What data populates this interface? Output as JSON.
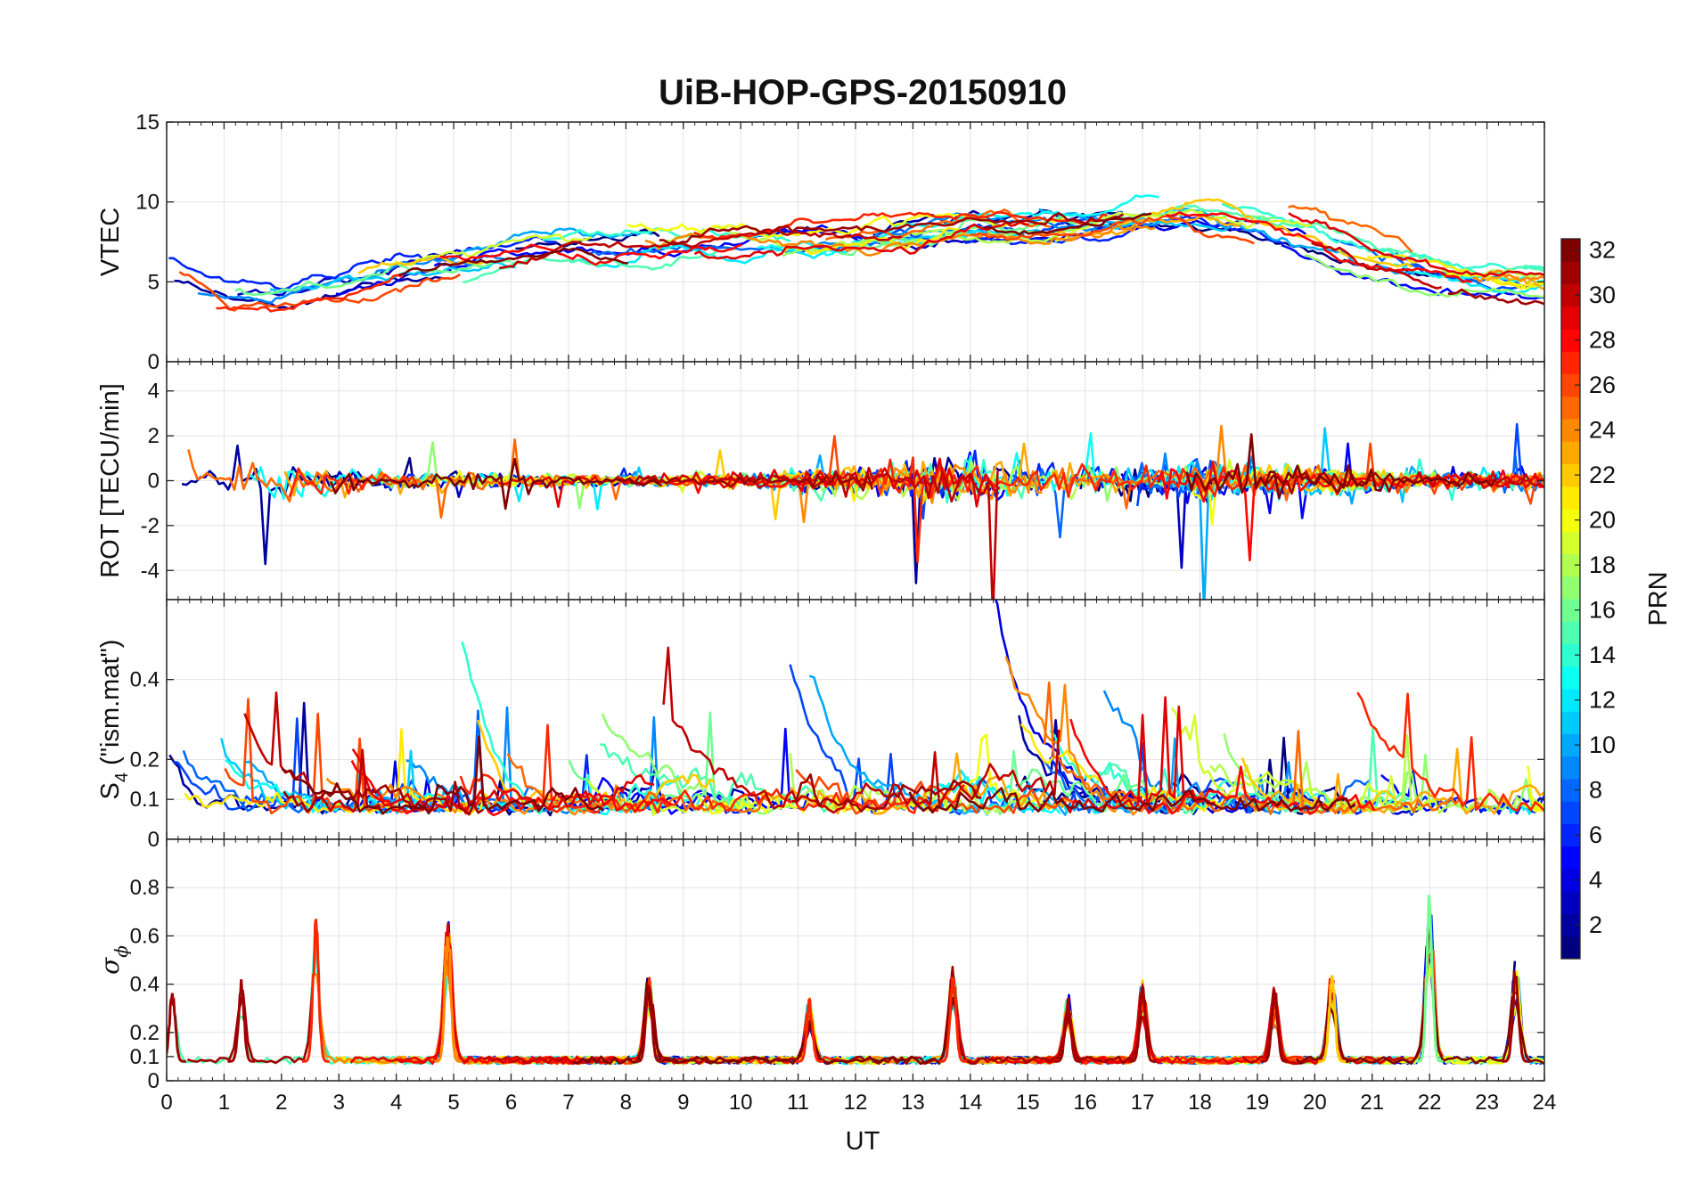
{
  "chart_data": {
    "type": "line",
    "title": "UiB-HOP-GPS-20150910",
    "xlabel": "UT",
    "xlim": [
      0,
      24
    ],
    "x_ticks": [
      "0",
      "1",
      "2",
      "3",
      "4",
      "5",
      "6",
      "7",
      "8",
      "9",
      "10",
      "11",
      "12",
      "13",
      "14",
      "15",
      "16",
      "17",
      "18",
      "19",
      "20",
      "21",
      "22",
      "23",
      "24"
    ],
    "series_note": "One line per GPS satellite PRN 1–32, coloured by PRN on a jet colormap",
    "panels": [
      {
        "id": "vtec",
        "ylabel": "VTEC",
        "ylim": [
          0,
          15
        ],
        "y_ticks": [
          "0",
          "5",
          "10",
          "15"
        ],
        "y_tick_values": [
          0,
          5,
          10,
          15
        ],
        "grid": true,
        "approx_background_profile": {
          "x": [
            0,
            1,
            2,
            3,
            4,
            5,
            6,
            7,
            8,
            9,
            10,
            11,
            12,
            13,
            14,
            15,
            16,
            17,
            18,
            19,
            20,
            21,
            22,
            23,
            24
          ],
          "y": [
            5.0,
            3.6,
            3.8,
            4.5,
            5.5,
            5.8,
            6.3,
            6.8,
            6.9,
            7.1,
            7.4,
            7.5,
            7.6,
            7.8,
            8.5,
            8.2,
            8.3,
            9.0,
            9.3,
            8.6,
            7.8,
            6.4,
            5.5,
            5.0,
            4.8
          ]
        }
      },
      {
        "id": "rot",
        "ylabel": "ROT [TECU/min]",
        "ylim": [
          -5.3,
          5.3
        ],
        "y_ticks": [
          "-4",
          "-2",
          "0",
          "2",
          "4"
        ],
        "y_tick_values": [
          -4,
          -2,
          0,
          2,
          4
        ],
        "grid": true,
        "approx_activity_profile": {
          "x": [
            0,
            1,
            2,
            3,
            4,
            5,
            6,
            7,
            8,
            9,
            10,
            11,
            12,
            13,
            14,
            15,
            16,
            17,
            18,
            19,
            20,
            21,
            22,
            23,
            24
          ],
          "y": [
            0.6,
            0.4,
            0.7,
            0.4,
            0.3,
            0.3,
            0.25,
            0.2,
            0.2,
            0.2,
            0.25,
            0.4,
            0.4,
            0.6,
            0.9,
            0.6,
            0.5,
            0.5,
            0.7,
            0.5,
            0.5,
            0.4,
            0.3,
            0.3,
            0.35
          ]
        }
      },
      {
        "id": "s4",
        "ylabel_main": "S",
        "ylabel_sub": "4",
        "ylabel_rest": " (\"ism.mat\")",
        "ylim": [
          0,
          0.6
        ],
        "y_ticks": [
          "0",
          "0.1",
          "0.2",
          "0.4"
        ],
        "y_tick_values": [
          0,
          0.1,
          0.2,
          0.4
        ],
        "grid": true,
        "approx_activity_profile": {
          "x": [
            0,
            1,
            2,
            3,
            4,
            5,
            6,
            7,
            8,
            9,
            10,
            11,
            12,
            13,
            14,
            15,
            16,
            17,
            18,
            19,
            20,
            21,
            22,
            23,
            24
          ],
          "y": [
            0.14,
            0.13,
            0.12,
            0.18,
            0.15,
            0.2,
            0.16,
            0.14,
            0.18,
            0.2,
            0.16,
            0.2,
            0.17,
            0.16,
            0.22,
            0.2,
            0.18,
            0.18,
            0.17,
            0.16,
            0.17,
            0.15,
            0.14,
            0.14,
            0.14
          ]
        }
      },
      {
        "id": "sigma_phi",
        "ylabel_main": "σ",
        "ylabel_sub": "ϕ",
        "ylim": [
          0,
          1
        ],
        "y_ticks": [
          "0",
          "0.1",
          "0.2",
          "0.4",
          "0.6",
          "0.8"
        ],
        "y_tick_values": [
          0,
          0.1,
          0.2,
          0.4,
          0.6,
          0.8
        ],
        "grid": true,
        "peaks": [
          {
            "ut": 0.1,
            "value": 0.38,
            "prn": 31
          },
          {
            "ut": 1.3,
            "value": 0.42,
            "prn": 31
          },
          {
            "ut": 2.6,
            "value": 0.68,
            "prn": 27
          },
          {
            "ut": 4.9,
            "value": 0.7,
            "prn": 24
          },
          {
            "ut": 8.4,
            "value": 0.47,
            "prn": 31
          },
          {
            "ut": 11.2,
            "value": 0.34,
            "prn": 27
          },
          {
            "ut": 13.7,
            "value": 0.49,
            "prn": 27
          },
          {
            "ut": 15.7,
            "value": 0.35,
            "prn": 31
          },
          {
            "ut": 17.0,
            "value": 0.42,
            "prn": 31
          },
          {
            "ut": 19.3,
            "value": 0.4,
            "prn": 31
          },
          {
            "ut": 20.3,
            "value": 0.47,
            "prn": 22
          },
          {
            "ut": 22.0,
            "value": 0.8,
            "prn": 16
          },
          {
            "ut": 23.5,
            "value": 0.51,
            "prn": 31
          }
        ]
      }
    ],
    "colorbar": {
      "label": "PRN",
      "range": [
        1,
        32
      ],
      "colormap": "jet",
      "ticks": [
        "2",
        "4",
        "6",
        "8",
        "10",
        "12",
        "14",
        "16",
        "18",
        "20",
        "22",
        "24",
        "26",
        "28",
        "30",
        "32"
      ],
      "tick_values": [
        2,
        4,
        6,
        8,
        10,
        12,
        14,
        16,
        18,
        20,
        22,
        24,
        26,
        28,
        30,
        32
      ]
    }
  }
}
